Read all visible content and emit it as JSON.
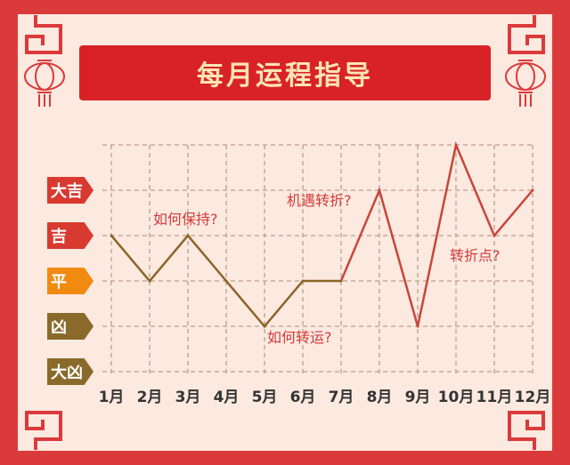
{
  "title": "每月运程指导",
  "chart_data": {
    "type": "line",
    "title": "每月运程指导",
    "categories": [
      "1月",
      "2月",
      "3月",
      "4月",
      "5月",
      "6月",
      "7月",
      "8月",
      "9月",
      "10月",
      "11月",
      "12月"
    ],
    "y_levels": [
      "大凶",
      "凶",
      "平",
      "吉",
      "大吉"
    ],
    "y_level_colors": [
      "#8a6a2a",
      "#8a6a2a",
      "#f08a10",
      "#d83a30",
      "#d83a30"
    ],
    "values": [
      3,
      2,
      3,
      2,
      1,
      2,
      2,
      4,
      1,
      5,
      3,
      4
    ],
    "ylim": [
      0,
      5
    ],
    "grid": true,
    "line_colors": {
      "months_1_to_7": "#8b6428",
      "months_7_to_12": "#c8463a"
    },
    "annotations": [
      {
        "text": "如何保持?",
        "month": "3月"
      },
      {
        "text": "如何转运?",
        "month": "6月"
      },
      {
        "text": "机遇转折?",
        "month": "8月"
      },
      {
        "text": "转折点?",
        "month": "11月"
      }
    ]
  }
}
